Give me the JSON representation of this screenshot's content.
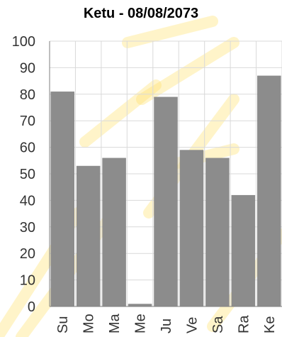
{
  "chart_data": {
    "type": "bar",
    "title": "Ketu - 08/08/2073",
    "xlabel": "",
    "ylabel": "",
    "categories": [
      "Su",
      "Mo",
      "Ma",
      "Me",
      "Ju",
      "Ve",
      "Sa",
      "Ra",
      "Ke"
    ],
    "values": [
      81,
      53,
      56,
      1,
      79,
      59,
      56,
      42,
      87
    ],
    "ylim": [
      0,
      100
    ],
    "yticks": [
      0,
      10,
      20,
      30,
      40,
      50,
      60,
      70,
      80,
      90,
      100
    ],
    "grid": true,
    "legend": "none",
    "bar_color": "#8c8c8c",
    "grid_color": "#d9d9d9",
    "watermark_color": "#ffe066"
  }
}
